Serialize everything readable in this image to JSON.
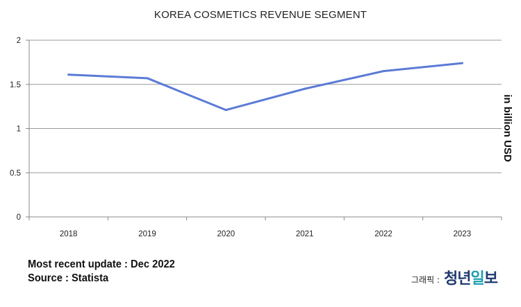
{
  "chart_data": {
    "type": "line",
    "title": "KOREA COSMETICS REVENUE SEGMENT",
    "xlabel": "",
    "ylabel": "in billion USD",
    "categories": [
      "2018",
      "2019",
      "2020",
      "2021",
      "2022",
      "2023"
    ],
    "series": [
      {
        "values": [
          1.61,
          1.57,
          1.21,
          1.45,
          1.65,
          1.74
        ],
        "color": "#5b7bd5"
      }
    ],
    "ylim": [
      0,
      2
    ],
    "yticks": [
      "0",
      "0.5",
      "1",
      "1.5",
      "2"
    ],
    "grid": "horizontal",
    "gridColor": "#999999"
  },
  "footer": {
    "update": "Most recent update : Dec 2022",
    "source": "Source : Statista"
  },
  "brand": {
    "prefix": "그래픽 :",
    "logo_main": "청년",
    "logo_accent": "일",
    "logo_end": "보"
  }
}
